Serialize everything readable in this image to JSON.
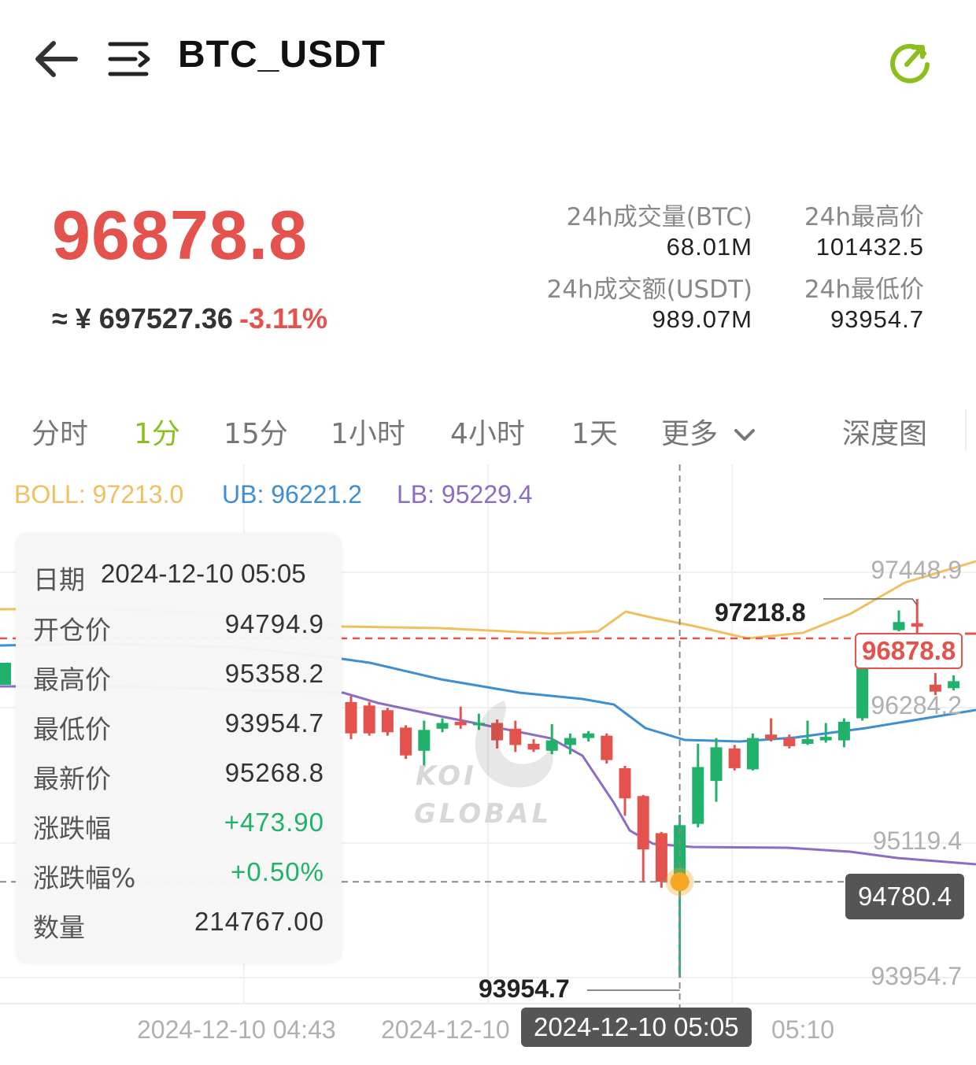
{
  "header": {
    "title": "BTC_USDT",
    "icons": {
      "back": "back-arrow-icon",
      "menu": "menu-icon",
      "refresh": "refresh-icon"
    },
    "accent_color": "#8cbf1e"
  },
  "price": {
    "last": "96878.8",
    "approx_cny": "≈ ¥ 697527.36",
    "change_pct": "-3.11%",
    "down_color": "#e4524d"
  },
  "stats": {
    "vol_btc_label": "24h成交量(BTC)",
    "vol_btc": "68.01M",
    "high_label": "24h最高价",
    "high": "101432.5",
    "vol_usdt_label": "24h成交额(USDT)",
    "vol_usdt": "989.07M",
    "low_label": "24h最低价",
    "low": "93954.7"
  },
  "tabs": [
    {
      "label": "分时",
      "active": false
    },
    {
      "label": "1分",
      "active": true
    },
    {
      "label": "15分",
      "active": false
    },
    {
      "label": "1小时",
      "active": false
    },
    {
      "label": "4小时",
      "active": false
    },
    {
      "label": "1天",
      "active": false
    },
    {
      "label": "更多",
      "active": false
    },
    {
      "label": "深度图",
      "active": false
    }
  ],
  "indicators": {
    "boll": "BOLL: 97213.0",
    "ub": "UB: 96221.2",
    "lb": "LB: 95229.4",
    "boll_color": "#f0c060",
    "ub_color": "#3d8fd1",
    "lb_color": "#8c6cc4"
  },
  "axis": {
    "y_ticks": [
      "97448.9",
      "96284.2",
      "95119.4",
      "93954.7"
    ],
    "x_ticks": [
      "2024-12-10 04:43",
      "2024-12-10",
      "05:10"
    ]
  },
  "markers": {
    "current_price": "96878.8",
    "crosshair_price": "94780.4",
    "crosshair_time": "2024-12-10 05:05",
    "visible_high": "97218.8",
    "visible_low": "93954.7"
  },
  "tooltip": {
    "date_label": "日期",
    "date_value": "2024-12-10 05:05",
    "rows": [
      {
        "label": "开仓价",
        "value": "94794.9"
      },
      {
        "label": "最高价",
        "value": "95358.2"
      },
      {
        "label": "最低价",
        "value": "93954.7"
      },
      {
        "label": "最新价",
        "value": "95268.8"
      },
      {
        "label": "涨跌幅",
        "value": "+473.90"
      },
      {
        "label": "涨跌幅%",
        "value": "+0.50%"
      },
      {
        "label": "数量",
        "value": "214767.00"
      }
    ]
  },
  "watermark": {
    "line1": "KOI",
    "line2": "GLOBAL"
  },
  "chart_data": {
    "type": "candlestick",
    "x_range": [
      "2024-12-10 04:43",
      "2024-12-10 05:10"
    ],
    "y_range": [
      93954.7,
      97448.9
    ],
    "candles": [
      {
        "open": 96330,
        "close": 96060,
        "high": 96380,
        "low": 96010
      },
      {
        "open": 96300,
        "close": 96060,
        "high": 96330,
        "low": 96040
      },
      {
        "open": 96260,
        "close": 96070,
        "high": 96280,
        "low": 96040
      },
      {
        "open": 96110,
        "close": 95870,
        "high": 96130,
        "low": 95840
      },
      {
        "open": 95910,
        "close": 96090,
        "high": 96170,
        "low": 95770
      },
      {
        "open": 96100,
        "close": 96150,
        "high": 96190,
        "low": 96070
      },
      {
        "open": 96160,
        "close": 96130,
        "high": 96290,
        "low": 96100
      },
      {
        "open": 96130,
        "close": 96150,
        "high": 96230,
        "low": 96090
      },
      {
        "open": 96150,
        "close": 96000,
        "high": 96180,
        "low": 95930
      },
      {
        "open": 96100,
        "close": 95960,
        "high": 96170,
        "low": 95900
      },
      {
        "open": 95970,
        "close": 95920,
        "high": 96010,
        "low": 95900
      },
      {
        "open": 95910,
        "close": 96000,
        "high": 96140,
        "low": 95880
      },
      {
        "open": 95960,
        "close": 96020,
        "high": 96060,
        "low": 95880
      },
      {
        "open": 96020,
        "close": 96060,
        "high": 96080,
        "low": 95990
      },
      {
        "open": 96040,
        "close": 95830,
        "high": 96060,
        "low": 95800
      },
      {
        "open": 95760,
        "close": 95500,
        "high": 95780,
        "low": 95350
      },
      {
        "open": 95520,
        "close": 95060,
        "high": 95530,
        "low": 94780
      },
      {
        "open": 95200,
        "close": 94780,
        "high": 95210,
        "low": 94730
      },
      {
        "open": 94794.9,
        "close": 95268.8,
        "high": 95358.2,
        "low": 93954.7
      },
      {
        "open": 95280,
        "close": 95770,
        "high": 95970,
        "low": 95250
      },
      {
        "open": 95650,
        "close": 95940,
        "high": 96020,
        "low": 95470
      },
      {
        "open": 95930,
        "close": 95760,
        "high": 95960,
        "low": 95740
      },
      {
        "open": 95750,
        "close": 96020,
        "high": 96060,
        "low": 95740
      },
      {
        "open": 96050,
        "close": 96010,
        "high": 96190,
        "low": 95990
      },
      {
        "open": 96020,
        "close": 95950,
        "high": 96050,
        "low": 95930
      },
      {
        "open": 95970,
        "close": 96010,
        "high": 96170,
        "low": 95960
      },
      {
        "open": 96000,
        "close": 96030,
        "high": 96150,
        "low": 95980
      },
      {
        "open": 96000,
        "close": 96160,
        "high": 96190,
        "low": 95940
      },
      {
        "open": 96190,
        "close": 96740,
        "high": 96760,
        "low": 96170
      },
      {
        "open": 96760,
        "close": 96800,
        "high": 96840,
        "low": 96740
      },
      {
        "open": 96950,
        "close": 97020,
        "high": 97120,
        "low": 96940
      },
      {
        "open": 97010,
        "close": 96980,
        "high": 97218.8,
        "low": 96800
      },
      {
        "open": 96480,
        "close": 96420,
        "high": 96580,
        "low": 96390
      },
      {
        "open": 96450,
        "close": 96510,
        "high": 96560,
        "low": 96430
      }
    ],
    "bands": {
      "boll": "BOLL: 97213.0",
      "ub": "UB: 96221.2",
      "lb": "LB: 95229.4"
    },
    "crosshair": {
      "time": "2024-12-10 05:05",
      "price": 94780.4
    },
    "last_price": 96878.8
  }
}
